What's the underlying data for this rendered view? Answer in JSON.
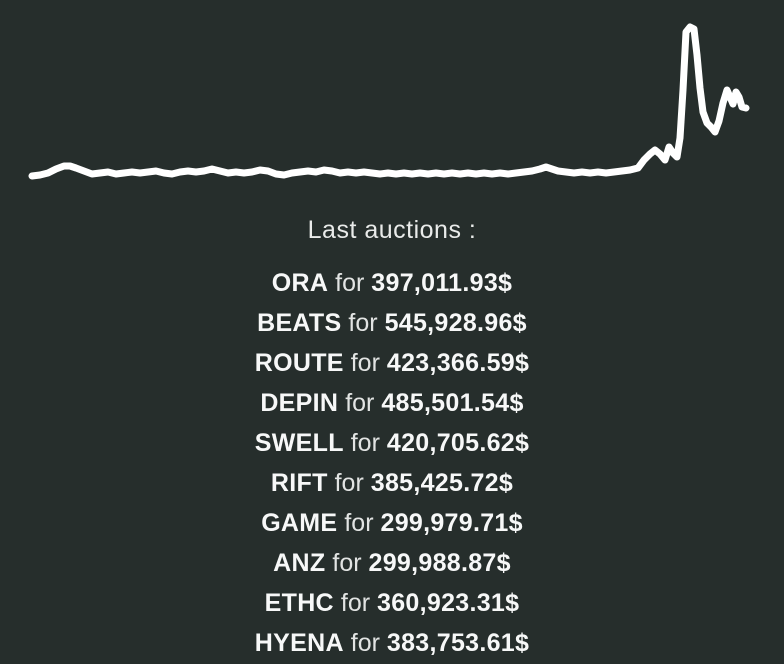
{
  "theme": {
    "background": "#262e2c",
    "line_color": "#ffffff",
    "text_color": "#e9ebea",
    "bold_text_color": "#f7f8f8"
  },
  "chart_data": {
    "type": "line",
    "title": "",
    "xlabel": "",
    "ylabel": "",
    "axes_visible": false,
    "grid": false,
    "legend": false,
    "description": "price sparkline, flat baseline with sharp spike near right edge",
    "stroke_width": 7,
    "units": "pixels in 784x200 viewBox",
    "series_name": "price",
    "points": [
      [
        32,
        176
      ],
      [
        40,
        175
      ],
      [
        48,
        173
      ],
      [
        56,
        169
      ],
      [
        64,
        166
      ],
      [
        70,
        166
      ],
      [
        76,
        168
      ],
      [
        84,
        171
      ],
      [
        92,
        174
      ],
      [
        100,
        173
      ],
      [
        108,
        172
      ],
      [
        116,
        174
      ],
      [
        124,
        173
      ],
      [
        132,
        172
      ],
      [
        140,
        173
      ],
      [
        148,
        172
      ],
      [
        156,
        171
      ],
      [
        164,
        173
      ],
      [
        172,
        174
      ],
      [
        180,
        172
      ],
      [
        188,
        171
      ],
      [
        196,
        172
      ],
      [
        204,
        171
      ],
      [
        212,
        169
      ],
      [
        220,
        171
      ],
      [
        228,
        173
      ],
      [
        236,
        172
      ],
      [
        244,
        173
      ],
      [
        252,
        172
      ],
      [
        260,
        170
      ],
      [
        268,
        171
      ],
      [
        276,
        174
      ],
      [
        284,
        175
      ],
      [
        292,
        173
      ],
      [
        300,
        172
      ],
      [
        308,
        171
      ],
      [
        316,
        172
      ],
      [
        324,
        170
      ],
      [
        332,
        171
      ],
      [
        340,
        173
      ],
      [
        348,
        172
      ],
      [
        356,
        173
      ],
      [
        364,
        172
      ],
      [
        372,
        173
      ],
      [
        380,
        174
      ],
      [
        388,
        173
      ],
      [
        396,
        174
      ],
      [
        404,
        173
      ],
      [
        412,
        174
      ],
      [
        420,
        173
      ],
      [
        428,
        174
      ],
      [
        436,
        173
      ],
      [
        444,
        174
      ],
      [
        452,
        173
      ],
      [
        460,
        174
      ],
      [
        468,
        173
      ],
      [
        476,
        174
      ],
      [
        484,
        173
      ],
      [
        492,
        174
      ],
      [
        500,
        173
      ],
      [
        508,
        174
      ],
      [
        516,
        173
      ],
      [
        524,
        172
      ],
      [
        532,
        171
      ],
      [
        540,
        169
      ],
      [
        546,
        167
      ],
      [
        552,
        169
      ],
      [
        558,
        171
      ],
      [
        566,
        172
      ],
      [
        574,
        173
      ],
      [
        582,
        172
      ],
      [
        590,
        173
      ],
      [
        598,
        172
      ],
      [
        606,
        173
      ],
      [
        614,
        172
      ],
      [
        622,
        171
      ],
      [
        630,
        170
      ],
      [
        638,
        168
      ],
      [
        644,
        160
      ],
      [
        650,
        154
      ],
      [
        655,
        150
      ],
      [
        660,
        154
      ],
      [
        665,
        160
      ],
      [
        669,
        147
      ],
      [
        673,
        153
      ],
      [
        677,
        157
      ],
      [
        680,
        138
      ],
      [
        683,
        90
      ],
      [
        686,
        32
      ],
      [
        690,
        27
      ],
      [
        694,
        29
      ],
      [
        697,
        55
      ],
      [
        700,
        88
      ],
      [
        703,
        112
      ],
      [
        707,
        123
      ],
      [
        711,
        127
      ],
      [
        715,
        132
      ],
      [
        719,
        121
      ],
      [
        723,
        103
      ],
      [
        727,
        90
      ],
      [
        730,
        97
      ],
      [
        733,
        104
      ],
      [
        736,
        92
      ],
      [
        739,
        97
      ],
      [
        742,
        107
      ],
      [
        746,
        108
      ]
    ]
  },
  "heading": {
    "label": "Last auctions :"
  },
  "auctions": {
    "connector": "for",
    "items": [
      {
        "token": "ORA",
        "price": "397,011.93$"
      },
      {
        "token": "BEATS",
        "price": "545,928.96$"
      },
      {
        "token": "ROUTE",
        "price": "423,366.59$"
      },
      {
        "token": "DEPIN",
        "price": "485,501.54$"
      },
      {
        "token": "SWELL",
        "price": "420,705.62$"
      },
      {
        "token": "RIFT",
        "price": "385,425.72$"
      },
      {
        "token": "GAME",
        "price": "299,979.71$"
      },
      {
        "token": "ANZ",
        "price": "299,988.87$"
      },
      {
        "token": "ETHC",
        "price": "360,923.31$"
      },
      {
        "token": "HYENA",
        "price": "383,753.61$"
      }
    ]
  }
}
